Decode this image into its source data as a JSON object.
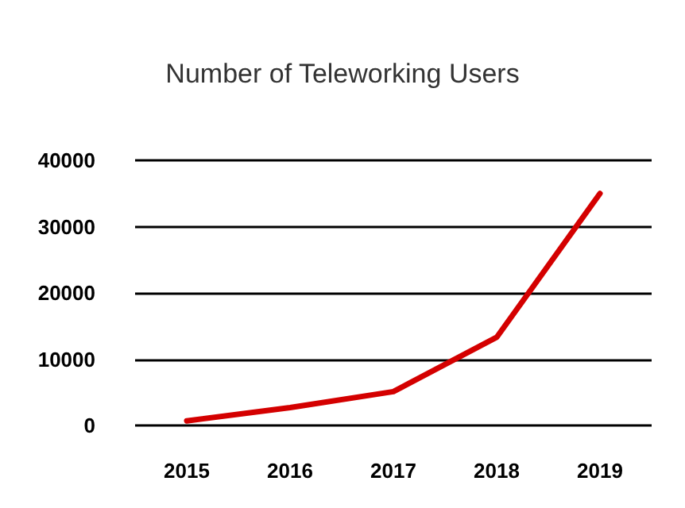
{
  "chart_data": {
    "type": "line",
    "title": "Number of Teleworking Users",
    "categories": [
      "2015",
      "2016",
      "2017",
      "2018",
      "2019"
    ],
    "series": [
      {
        "color": "#d40000",
        "values": [
          700,
          2700,
          5100,
          13300,
          35000
        ]
      }
    ],
    "ylim": [
      0,
      40000
    ],
    "yticks": [
      0,
      10000,
      20000,
      30000,
      40000
    ],
    "grid": "y",
    "marker": "none",
    "line_style": "solid"
  }
}
